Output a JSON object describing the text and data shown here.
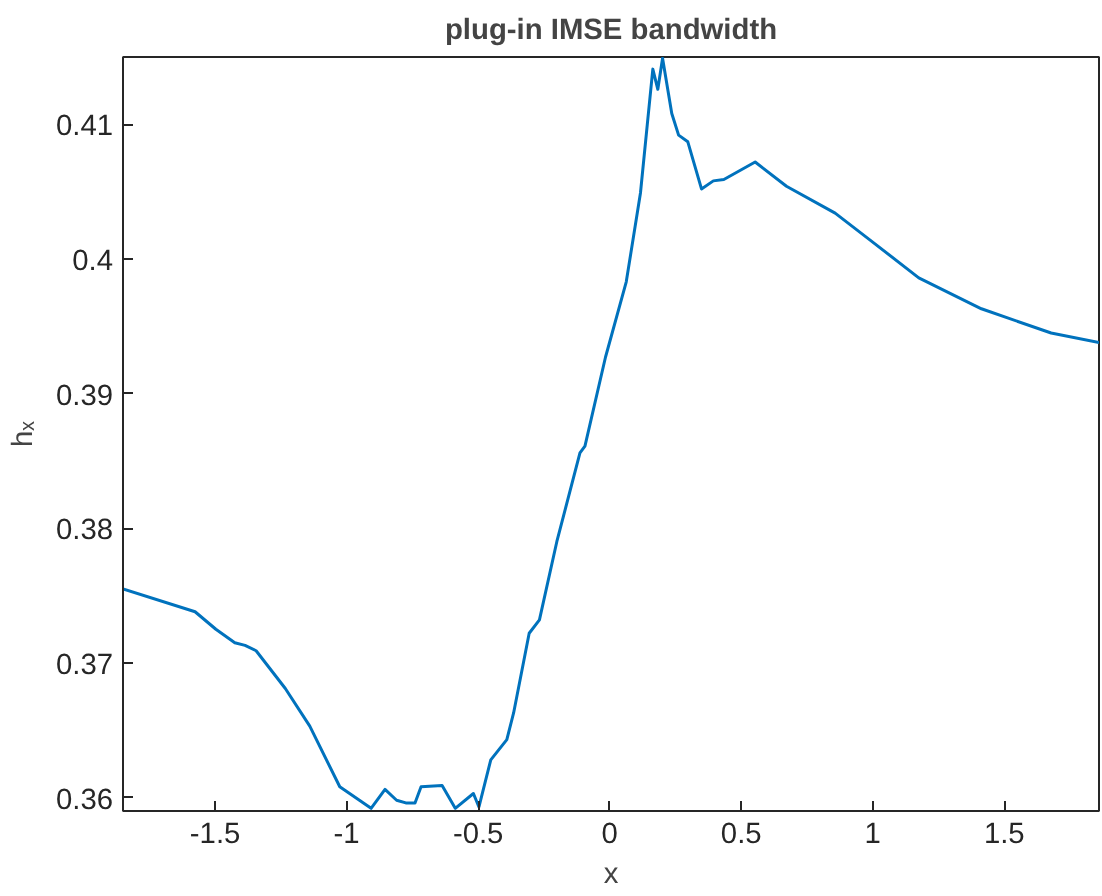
{
  "chart_data": {
    "type": "line",
    "title": "plug-in IMSE bandwidth",
    "xlabel": "x",
    "ylabel": "hₓ",
    "x": [
      -1.85,
      -1.576,
      -1.497,
      -1.425,
      -1.386,
      -1.344,
      -1.233,
      -1.14,
      -1.026,
      -0.907,
      -0.854,
      -0.81,
      -0.775,
      -0.74,
      -0.717,
      -0.637,
      -0.587,
      -0.518,
      -0.497,
      -0.452,
      -0.391,
      -0.365,
      -0.306,
      -0.267,
      -0.201,
      -0.113,
      -0.094,
      -0.016,
      0.063,
      0.117,
      0.143,
      0.164,
      0.183,
      0.201,
      0.236,
      0.262,
      0.297,
      0.349,
      0.394,
      0.434,
      0.553,
      0.672,
      0.857,
      0.99,
      1.175,
      1.413,
      1.678,
      1.86
    ],
    "series": [
      {
        "color": "#0072bd",
        "values": [
          0.3755,
          0.3738,
          0.3725,
          0.3715,
          0.3713,
          0.3709,
          0.3681,
          0.3653,
          0.3608,
          0.3592,
          0.3606,
          0.3598,
          0.3596,
          0.3596,
          0.3608,
          0.3609,
          0.3592,
          0.3603,
          0.3593,
          0.3628,
          0.3643,
          0.3663,
          0.3722,
          0.3732,
          0.379,
          0.3856,
          0.3861,
          0.3927,
          0.3983,
          0.4049,
          0.41,
          0.4141,
          0.4126,
          0.4149,
          0.4108,
          0.4092,
          0.4087,
          0.4052,
          0.4058,
          0.4059,
          0.4072,
          0.4054,
          0.4034,
          0.4014,
          0.3986,
          0.3963,
          0.3945,
          0.3938
        ]
      }
    ],
    "xlim": [
      -1.85,
      1.86
    ],
    "ylim": [
      0.359,
      0.415
    ],
    "xticks": [
      -1.5,
      -1,
      -0.5,
      0,
      0.5,
      1,
      1.5
    ],
    "yticks": [
      0.36,
      0.37,
      0.38,
      0.39,
      0.4,
      0.41
    ],
    "grid": false,
    "marker": "none",
    "line_style": "solid"
  }
}
